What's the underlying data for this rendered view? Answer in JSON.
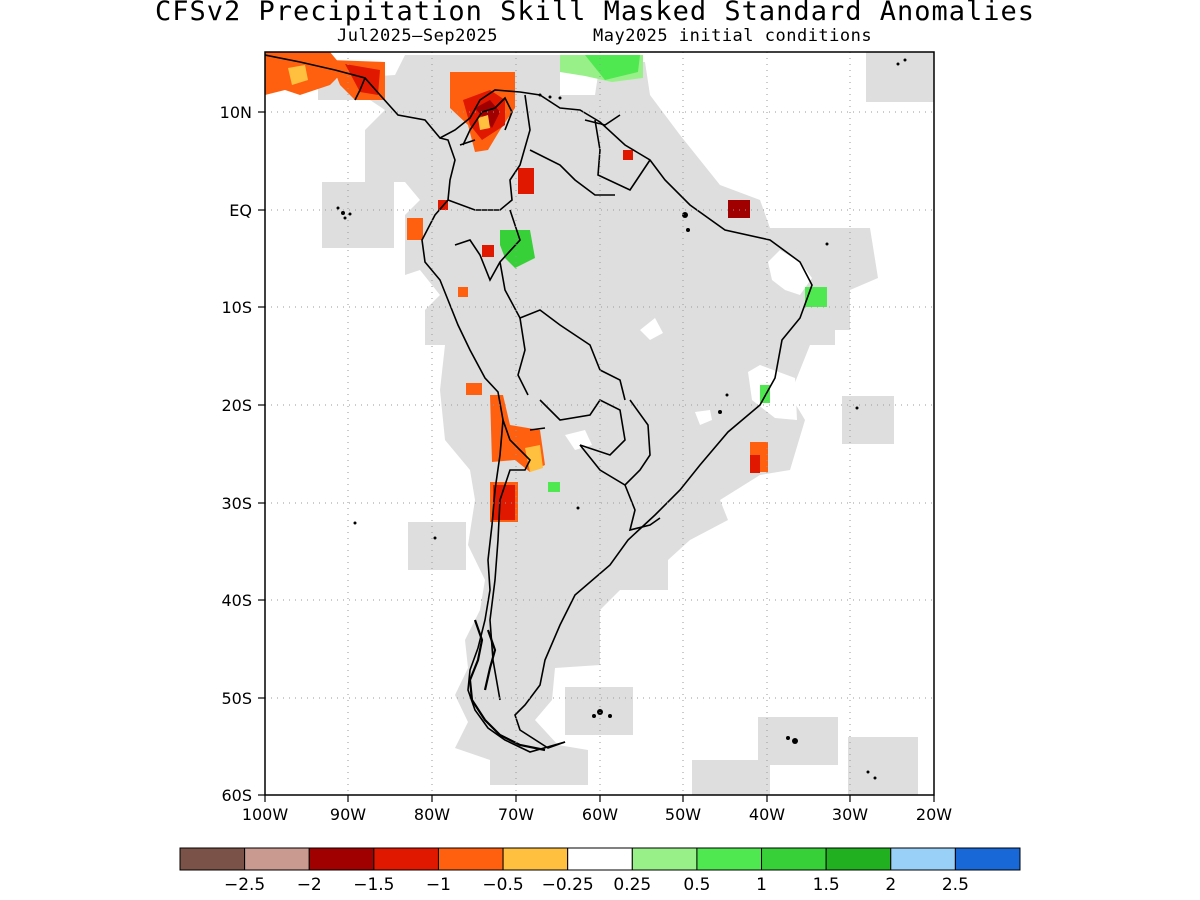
{
  "title": "CFSv2 Precipitation Skill Masked Standard Anomalies",
  "subtitle_left": "Jul2025–Sep2025",
  "subtitle_right": "May2025 initial conditions",
  "map": {
    "lat_labels": [
      "10N",
      "EQ",
      "10S",
      "20S",
      "30S",
      "40S",
      "50S",
      "60S"
    ],
    "lon_labels": [
      "100W",
      "90W",
      "80W",
      "70W",
      "60W",
      "50W",
      "40W",
      "30W",
      "20W"
    ],
    "lon_range": [
      -100,
      -20
    ],
    "lat_range": [
      -60,
      13
    ],
    "mask_color": "#dedede",
    "coast_color": "#000000"
  },
  "colorbar": {
    "colors": [
      "#7a5248",
      "#c89a90",
      "#a00000",
      "#e01800",
      "#ff6010",
      "#ffc040",
      "#ffffff",
      "#98f088",
      "#50e850",
      "#38d038",
      "#20b020",
      "#98d0f8",
      "#1868d8"
    ],
    "labels": [
      "−2.5",
      "−2",
      "−1.5",
      "−1",
      "−0.5",
      "−0.25",
      "0.25",
      "0.5",
      "1",
      "1.5",
      "2",
      "2.5"
    ]
  }
}
